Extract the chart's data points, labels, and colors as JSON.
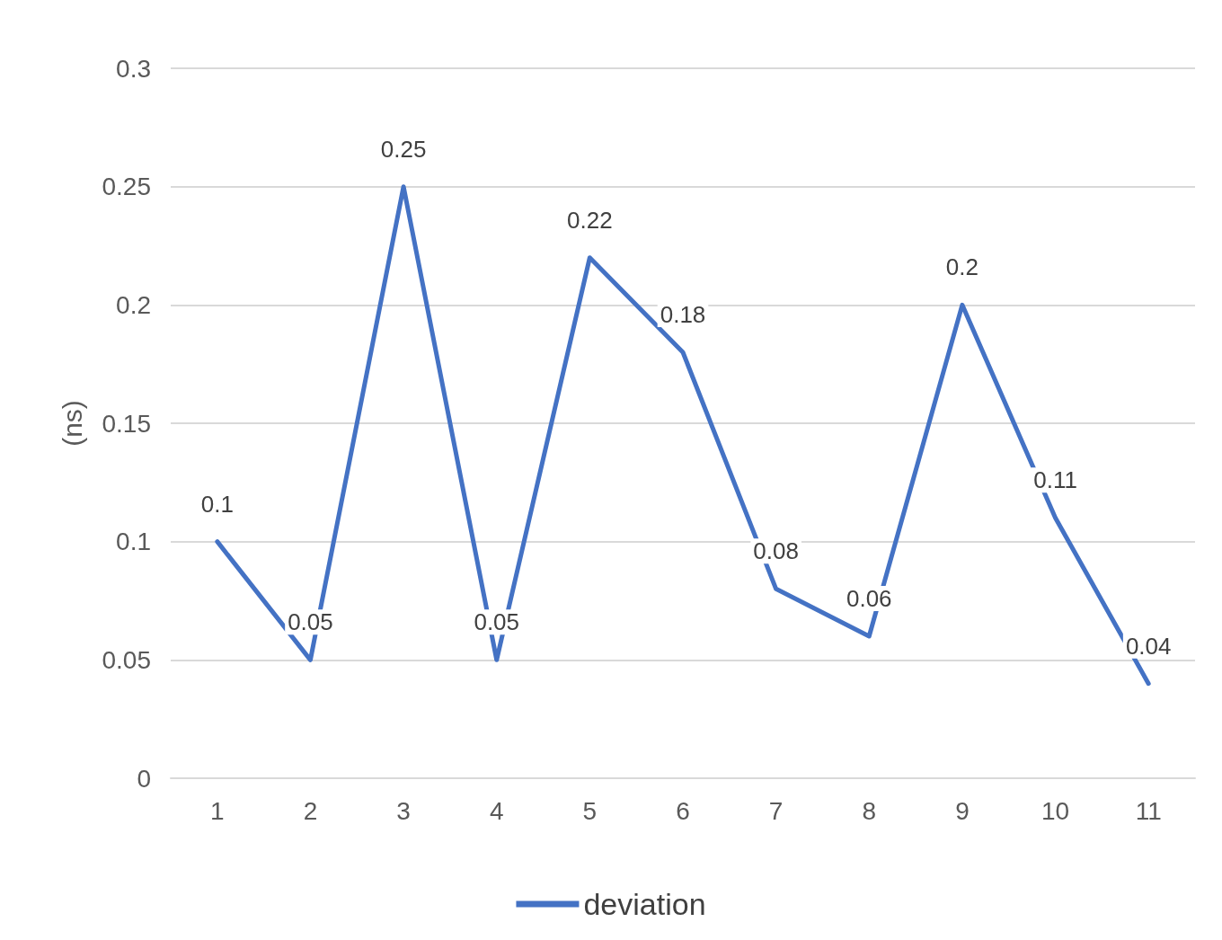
{
  "chart_data": {
    "type": "line",
    "ylabel": "(ns)",
    "categories": [
      "1",
      "2",
      "3",
      "4",
      "5",
      "6",
      "7",
      "8",
      "9",
      "10",
      "11"
    ],
    "series": [
      {
        "name": "deviation",
        "color": "#4472c4",
        "values": [
          0.1,
          0.05,
          0.25,
          0.05,
          0.22,
          0.18,
          0.08,
          0.06,
          0.2,
          0.11,
          0.04
        ]
      }
    ],
    "ylim": [
      0,
      0.3
    ],
    "yticks": [
      0,
      0.05,
      0.1,
      0.15,
      0.2,
      0.25,
      0.3
    ],
    "grid": "y",
    "legend": "bottom",
    "data_labels": true,
    "marker": "none",
    "line_style": "solid"
  }
}
